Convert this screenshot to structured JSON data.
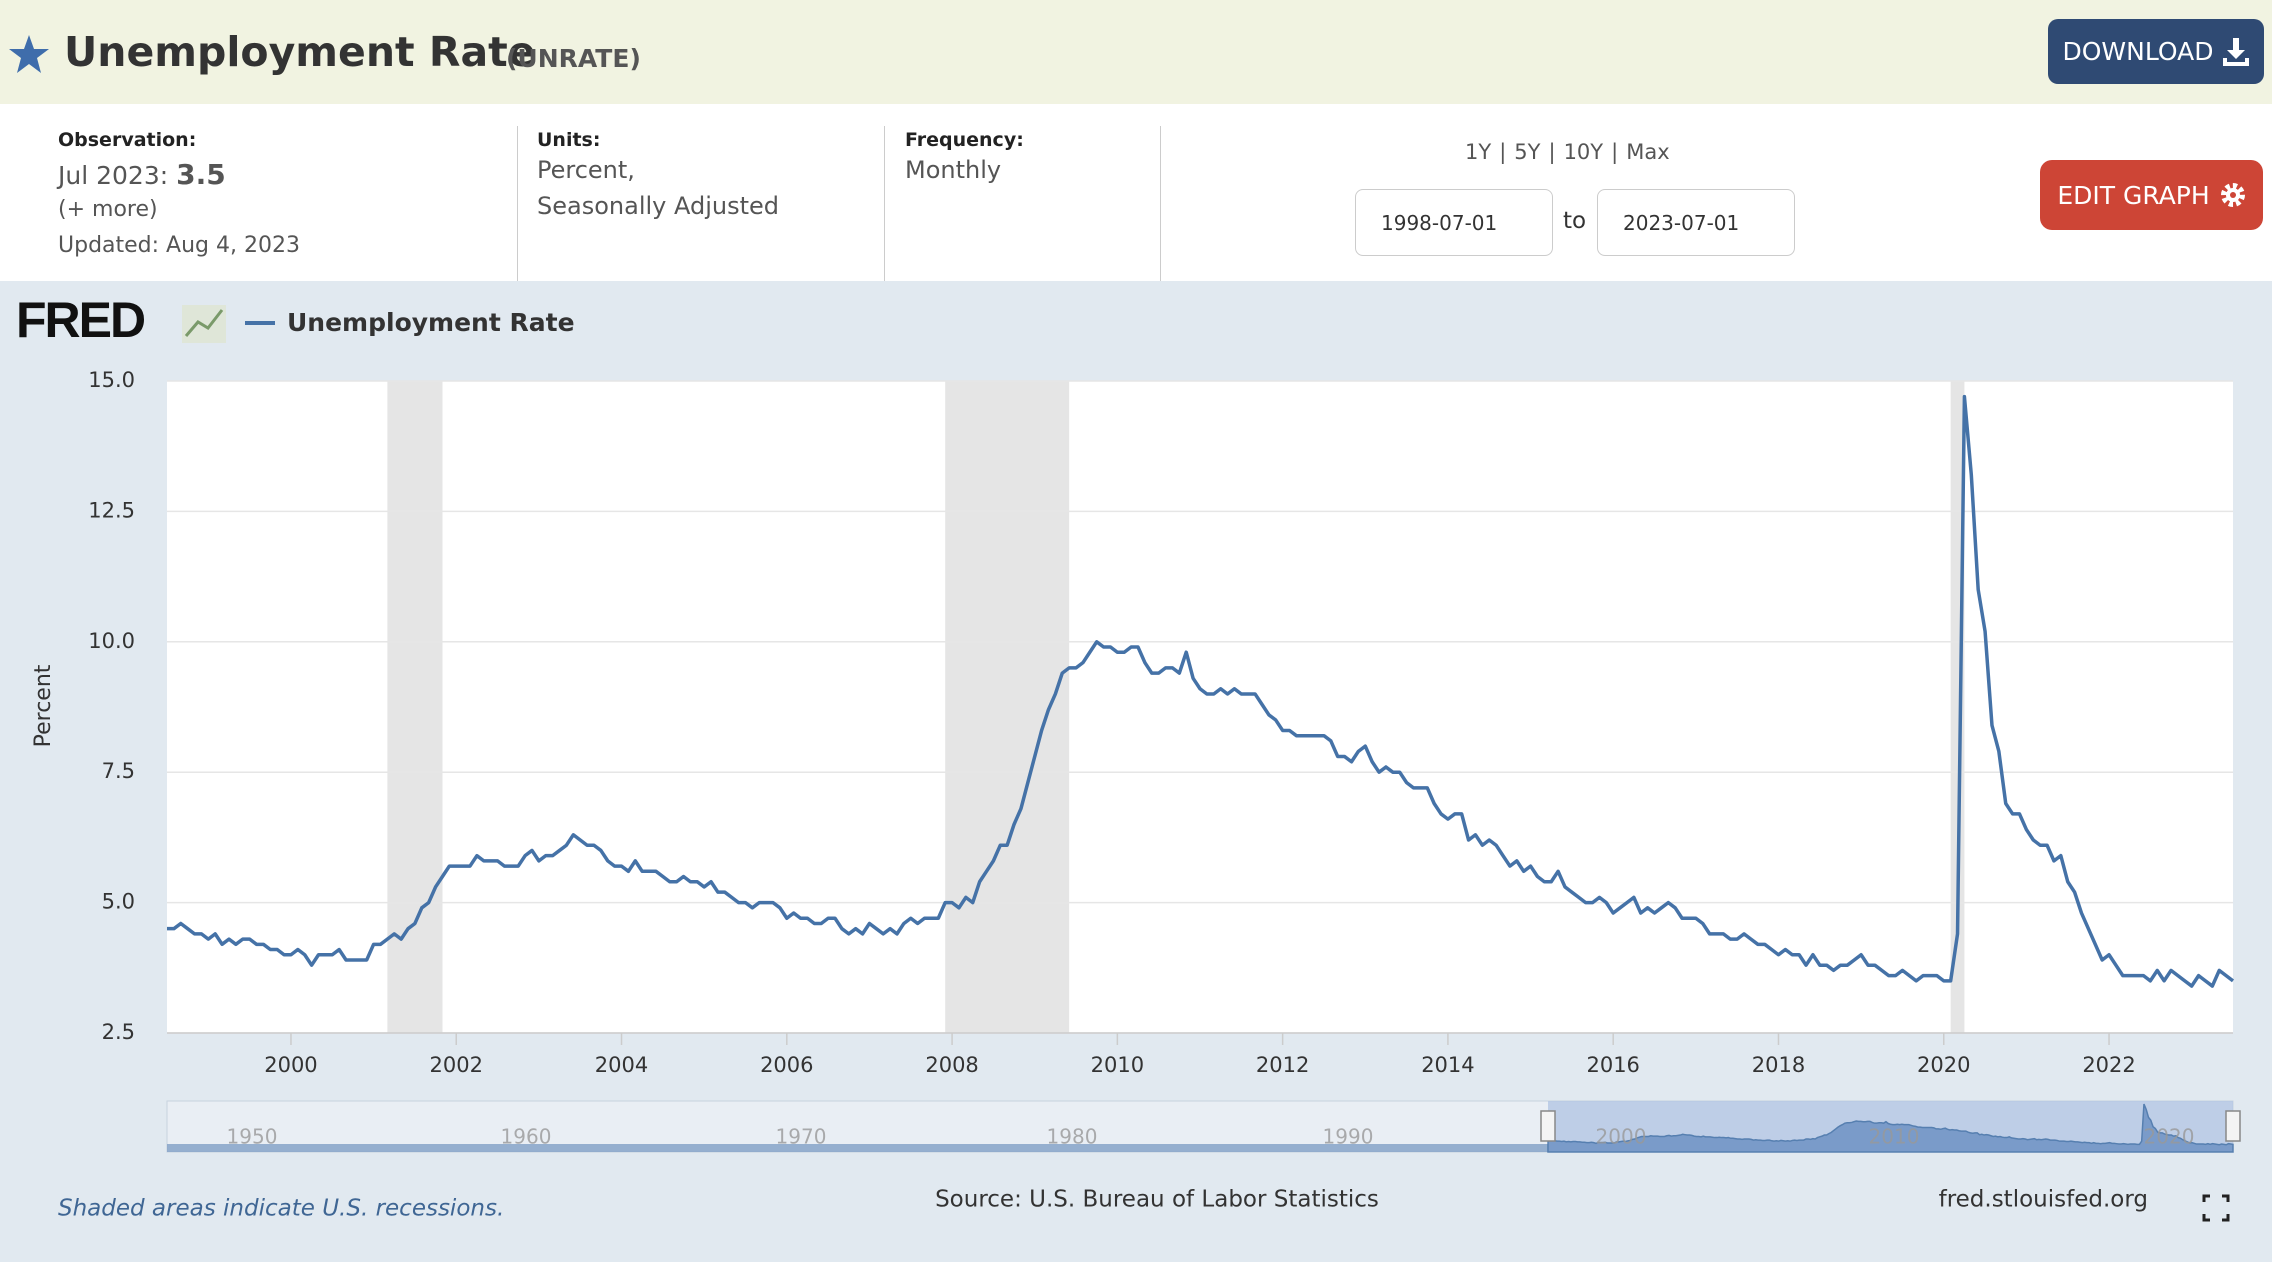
{
  "header": {
    "title": "Unemployment Rate",
    "series_id": "(UNRATE)",
    "download": "DOWNLOAD"
  },
  "info": {
    "observation_label": "Observation:",
    "observation_date": "Jul 2023:",
    "observation_value": "3.5",
    "more": "(+ more)",
    "updated": "Updated: Aug 4, 2023",
    "units_label": "Units:",
    "units_line1": "Percent,",
    "units_line2": "Seasonally Adjusted",
    "frequency_label": "Frequency:",
    "frequency": "Monthly",
    "periods": [
      "1Y",
      "5Y",
      "10Y",
      "Max"
    ],
    "start_date": "1998-07-01",
    "to": "to",
    "end_date": "2023-07-01",
    "edit": "EDIT GRAPH"
  },
  "logo": "FRED",
  "chart_data": {
    "type": "line",
    "ylabel": "Percent",
    "x": [
      "1998-07",
      "1998-08",
      "1998-09",
      "1998-10",
      "1998-11",
      "1998-12",
      "1999-01",
      "1999-02",
      "1999-03",
      "1999-04",
      "1999-05",
      "1999-06",
      "1999-07",
      "1999-08",
      "1999-09",
      "1999-10",
      "1999-11",
      "1999-12",
      "2000-01",
      "2000-02",
      "2000-03",
      "2000-04",
      "2000-05",
      "2000-06",
      "2000-07",
      "2000-08",
      "2000-09",
      "2000-10",
      "2000-11",
      "2000-12",
      "2001-01",
      "2001-02",
      "2001-03",
      "2001-04",
      "2001-05",
      "2001-06",
      "2001-07",
      "2001-08",
      "2001-09",
      "2001-10",
      "2001-11",
      "2001-12",
      "2002-01",
      "2002-02",
      "2002-03",
      "2002-04",
      "2002-05",
      "2002-06",
      "2002-07",
      "2002-08",
      "2002-09",
      "2002-10",
      "2002-11",
      "2002-12",
      "2003-01",
      "2003-02",
      "2003-03",
      "2003-04",
      "2003-05",
      "2003-06",
      "2003-07",
      "2003-08",
      "2003-09",
      "2003-10",
      "2003-11",
      "2003-12",
      "2004-01",
      "2004-02",
      "2004-03",
      "2004-04",
      "2004-05",
      "2004-06",
      "2004-07",
      "2004-08",
      "2004-09",
      "2004-10",
      "2004-11",
      "2004-12",
      "2005-01",
      "2005-02",
      "2005-03",
      "2005-04",
      "2005-05",
      "2005-06",
      "2005-07",
      "2005-08",
      "2005-09",
      "2005-10",
      "2005-11",
      "2005-12",
      "2006-01",
      "2006-02",
      "2006-03",
      "2006-04",
      "2006-05",
      "2006-06",
      "2006-07",
      "2006-08",
      "2006-09",
      "2006-10",
      "2006-11",
      "2006-12",
      "2007-01",
      "2007-02",
      "2007-03",
      "2007-04",
      "2007-05",
      "2007-06",
      "2007-07",
      "2007-08",
      "2007-09",
      "2007-10",
      "2007-11",
      "2007-12",
      "2008-01",
      "2008-02",
      "2008-03",
      "2008-04",
      "2008-05",
      "2008-06",
      "2008-07",
      "2008-08",
      "2008-09",
      "2008-10",
      "2008-11",
      "2008-12",
      "2009-01",
      "2009-02",
      "2009-03",
      "2009-04",
      "2009-05",
      "2009-06",
      "2009-07",
      "2009-08",
      "2009-09",
      "2009-10",
      "2009-11",
      "2009-12",
      "2010-01",
      "2010-02",
      "2010-03",
      "2010-04",
      "2010-05",
      "2010-06",
      "2010-07",
      "2010-08",
      "2010-09",
      "2010-10",
      "2010-11",
      "2010-12",
      "2011-01",
      "2011-02",
      "2011-03",
      "2011-04",
      "2011-05",
      "2011-06",
      "2011-07",
      "2011-08",
      "2011-09",
      "2011-10",
      "2011-11",
      "2011-12",
      "2012-01",
      "2012-02",
      "2012-03",
      "2012-04",
      "2012-05",
      "2012-06",
      "2012-07",
      "2012-08",
      "2012-09",
      "2012-10",
      "2012-11",
      "2012-12",
      "2013-01",
      "2013-02",
      "2013-03",
      "2013-04",
      "2013-05",
      "2013-06",
      "2013-07",
      "2013-08",
      "2013-09",
      "2013-10",
      "2013-11",
      "2013-12",
      "2014-01",
      "2014-02",
      "2014-03",
      "2014-04",
      "2014-05",
      "2014-06",
      "2014-07",
      "2014-08",
      "2014-09",
      "2014-10",
      "2014-11",
      "2014-12",
      "2015-01",
      "2015-02",
      "2015-03",
      "2015-04",
      "2015-05",
      "2015-06",
      "2015-07",
      "2015-08",
      "2015-09",
      "2015-10",
      "2015-11",
      "2015-12",
      "2016-01",
      "2016-02",
      "2016-03",
      "2016-04",
      "2016-05",
      "2016-06",
      "2016-07",
      "2016-08",
      "2016-09",
      "2016-10",
      "2016-11",
      "2016-12",
      "2017-01",
      "2017-02",
      "2017-03",
      "2017-04",
      "2017-05",
      "2017-06",
      "2017-07",
      "2017-08",
      "2017-09",
      "2017-10",
      "2017-11",
      "2017-12",
      "2018-01",
      "2018-02",
      "2018-03",
      "2018-04",
      "2018-05",
      "2018-06",
      "2018-07",
      "2018-08",
      "2018-09",
      "2018-10",
      "2018-11",
      "2018-12",
      "2019-01",
      "2019-02",
      "2019-03",
      "2019-04",
      "2019-05",
      "2019-06",
      "2019-07",
      "2019-08",
      "2019-09",
      "2019-10",
      "2019-11",
      "2019-12",
      "2020-01",
      "2020-02",
      "2020-03",
      "2020-04",
      "2020-05",
      "2020-06",
      "2020-07",
      "2020-08",
      "2020-09",
      "2020-10",
      "2020-11",
      "2020-12",
      "2021-01",
      "2021-02",
      "2021-03",
      "2021-04",
      "2021-05",
      "2021-06",
      "2021-07",
      "2021-08",
      "2021-09",
      "2021-10",
      "2021-11",
      "2021-12",
      "2022-01",
      "2022-02",
      "2022-03",
      "2022-04",
      "2022-05",
      "2022-06",
      "2022-07",
      "2022-08",
      "2022-09",
      "2022-10",
      "2022-11",
      "2022-12",
      "2023-01",
      "2023-02",
      "2023-03",
      "2023-04",
      "2023-05",
      "2023-06",
      "2023-07"
    ],
    "series": [
      {
        "name": "Unemployment Rate",
        "color": "#4572a7",
        "values": [
          4.5,
          4.5,
          4.6,
          4.5,
          4.4,
          4.4,
          4.3,
          4.4,
          4.2,
          4.3,
          4.2,
          4.3,
          4.3,
          4.2,
          4.2,
          4.1,
          4.1,
          4.0,
          4.0,
          4.1,
          4.0,
          3.8,
          4.0,
          4.0,
          4.0,
          4.1,
          3.9,
          3.9,
          3.9,
          3.9,
          4.2,
          4.2,
          4.3,
          4.4,
          4.3,
          4.5,
          4.6,
          4.9,
          5.0,
          5.3,
          5.5,
          5.7,
          5.7,
          5.7,
          5.7,
          5.9,
          5.8,
          5.8,
          5.8,
          5.7,
          5.7,
          5.7,
          5.9,
          6.0,
          5.8,
          5.9,
          5.9,
          6.0,
          6.1,
          6.3,
          6.2,
          6.1,
          6.1,
          6.0,
          5.8,
          5.7,
          5.7,
          5.6,
          5.8,
          5.6,
          5.6,
          5.6,
          5.5,
          5.4,
          5.4,
          5.5,
          5.4,
          5.4,
          5.3,
          5.4,
          5.2,
          5.2,
          5.1,
          5.0,
          5.0,
          4.9,
          5.0,
          5.0,
          5.0,
          4.9,
          4.7,
          4.8,
          4.7,
          4.7,
          4.6,
          4.6,
          4.7,
          4.7,
          4.5,
          4.4,
          4.5,
          4.4,
          4.6,
          4.5,
          4.4,
          4.5,
          4.4,
          4.6,
          4.7,
          4.6,
          4.7,
          4.7,
          4.7,
          5.0,
          5.0,
          4.9,
          5.1,
          5.0,
          5.4,
          5.6,
          5.8,
          6.1,
          6.1,
          6.5,
          6.8,
          7.3,
          7.8,
          8.3,
          8.7,
          9.0,
          9.4,
          9.5,
          9.5,
          9.6,
          9.8,
          10.0,
          9.9,
          9.9,
          9.8,
          9.8,
          9.9,
          9.9,
          9.6,
          9.4,
          9.4,
          9.5,
          9.5,
          9.4,
          9.8,
          9.3,
          9.1,
          9.0,
          9.0,
          9.1,
          9.0,
          9.1,
          9.0,
          9.0,
          9.0,
          8.8,
          8.6,
          8.5,
          8.3,
          8.3,
          8.2,
          8.2,
          8.2,
          8.2,
          8.2,
          8.1,
          7.8,
          7.8,
          7.7,
          7.9,
          8.0,
          7.7,
          7.5,
          7.6,
          7.5,
          7.5,
          7.3,
          7.2,
          7.2,
          7.2,
          6.9,
          6.7,
          6.6,
          6.7,
          6.7,
          6.2,
          6.3,
          6.1,
          6.2,
          6.1,
          5.9,
          5.7,
          5.8,
          5.6,
          5.7,
          5.5,
          5.4,
          5.4,
          5.6,
          5.3,
          5.2,
          5.1,
          5.0,
          5.0,
          5.1,
          5.0,
          4.8,
          4.9,
          5.0,
          5.1,
          4.8,
          4.9,
          4.8,
          4.9,
          5.0,
          4.9,
          4.7,
          4.7,
          4.7,
          4.6,
          4.4,
          4.4,
          4.4,
          4.3,
          4.3,
          4.4,
          4.3,
          4.2,
          4.2,
          4.1,
          4.0,
          4.1,
          4.0,
          4.0,
          3.8,
          4.0,
          3.8,
          3.8,
          3.7,
          3.8,
          3.8,
          3.9,
          4.0,
          3.8,
          3.8,
          3.7,
          3.6,
          3.6,
          3.7,
          3.6,
          3.5,
          3.6,
          3.6,
          3.6,
          3.5,
          3.5,
          4.4,
          14.7,
          13.2,
          11.0,
          10.2,
          8.4,
          7.9,
          6.9,
          6.7,
          6.7,
          6.4,
          6.2,
          6.1,
          6.1,
          5.8,
          5.9,
          5.4,
          5.2,
          4.8,
          4.5,
          4.2,
          3.9,
          4.0,
          3.8,
          3.6,
          3.6,
          3.6,
          3.6,
          3.5,
          3.7,
          3.5,
          3.7,
          3.6,
          3.5,
          3.4,
          3.6,
          3.5,
          3.4,
          3.7,
          3.6,
          3.5
        ]
      }
    ],
    "recessions": [
      [
        "2001-03",
        "2001-11"
      ],
      [
        "2007-12",
        "2009-06"
      ],
      [
        "2020-02",
        "2020-04"
      ]
    ],
    "xlim": [
      "1998-07",
      "2023-07"
    ],
    "xticks": [
      2000,
      2002,
      2004,
      2006,
      2008,
      2010,
      2012,
      2014,
      2016,
      2018,
      2020,
      2022
    ],
    "ylim": [
      2.5,
      15
    ],
    "yticks": [
      2.5,
      {
        "value": 5,
        "label": "5.0"
      },
      7.5,
      {
        "value": 10,
        "label": "10.0"
      },
      12.5,
      {
        "value": 15,
        "label": "15.0"
      }
    ],
    "grid": true
  },
  "navigator": {
    "labels": [
      "1950",
      "1960",
      "1970",
      "1980",
      "1990",
      "2000",
      "2010",
      "2020"
    ]
  },
  "footer": {
    "note": "Shaded areas indicate U.S. recessions.",
    "source": "Source: U.S. Bureau of Labor Statistics",
    "site": "fred.stlouisfed.org"
  }
}
